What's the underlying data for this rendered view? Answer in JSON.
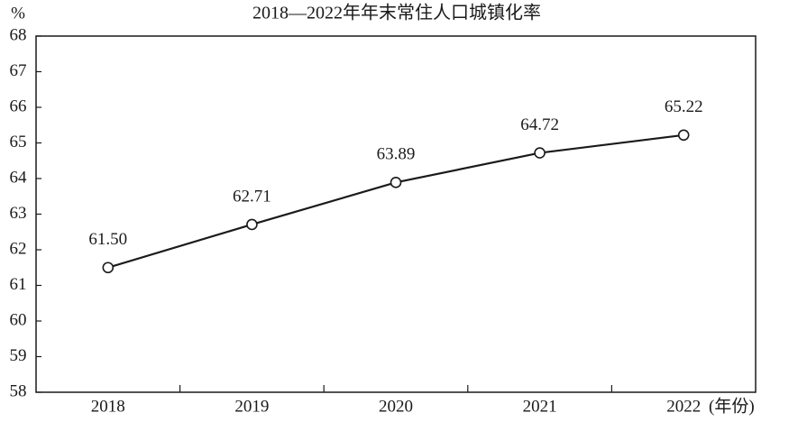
{
  "chart_data": {
    "type": "line",
    "title": "2018—2022年年末常住人口城镇化率",
    "y_label": "%",
    "x_label": "(年份)",
    "categories": [
      "2018",
      "2019",
      "2020",
      "2021",
      "2022"
    ],
    "values": [
      61.5,
      62.71,
      63.89,
      64.72,
      65.22
    ],
    "value_labels": [
      "61.50",
      "62.71",
      "63.89",
      "64.72",
      "65.22"
    ],
    "color": "#1a1a1a",
    "ylim": [
      58,
      68
    ],
    "yticks": [
      58,
      59,
      60,
      61,
      62,
      63,
      64,
      65,
      66,
      67,
      68
    ],
    "grid": false
  }
}
